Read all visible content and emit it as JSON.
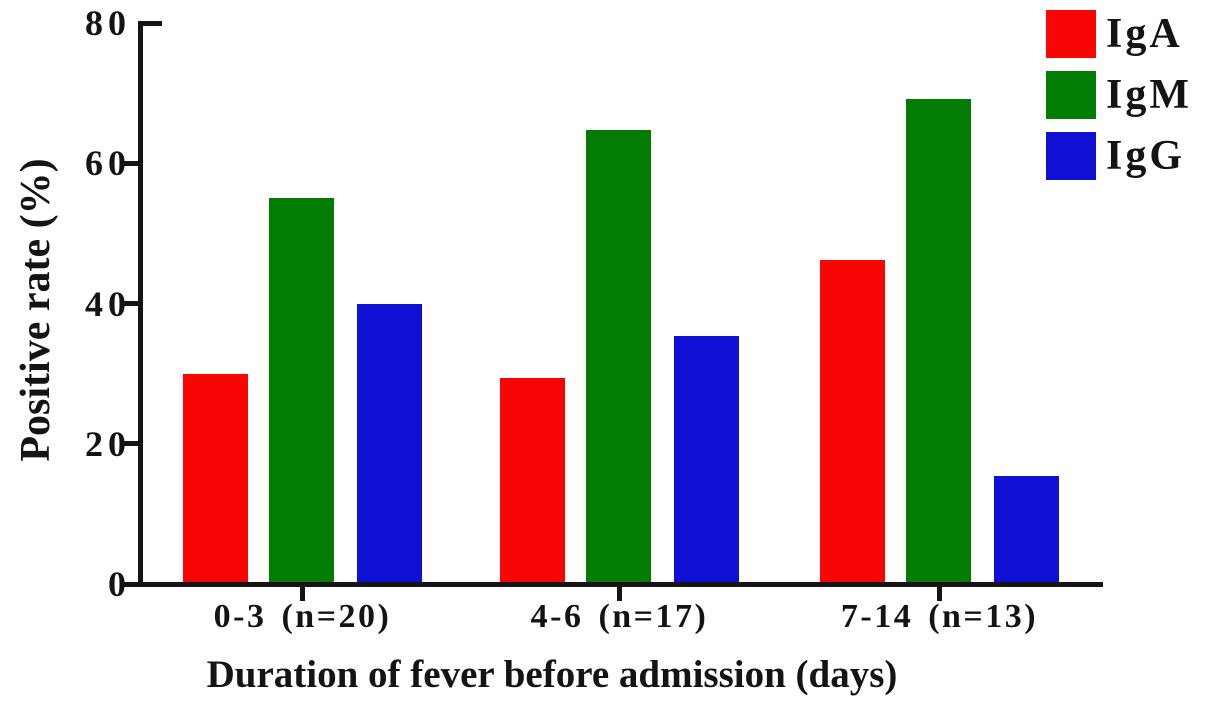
{
  "chart_data": {
    "type": "bar",
    "title": "",
    "xlabel": "Duration of fever before admission (days)",
    "ylabel": "Positive rate (%)",
    "categories": [
      "0-3 (n=20)",
      "4-6 (n=17)",
      "7-14 (n=13)"
    ],
    "series": [
      {
        "name": "IgA",
        "color": "#f90505",
        "values": [
          30.0,
          29.4,
          46.2
        ]
      },
      {
        "name": "IgM",
        "color": "#027c02",
        "values": [
          55.0,
          64.7,
          69.2
        ]
      },
      {
        "name": "IgG",
        "color": "#1010d4",
        "values": [
          40.0,
          35.3,
          15.4
        ]
      }
    ],
    "ylim": [
      0,
      80
    ],
    "yticks": [
      0,
      20,
      40,
      60,
      80
    ],
    "y_tick_labels": [
      "0",
      "20",
      "40",
      "60",
      "80"
    ],
    "grid": false,
    "legend_position": "top-right",
    "axis_color": "#141414",
    "background_color": "#ffffff"
  }
}
